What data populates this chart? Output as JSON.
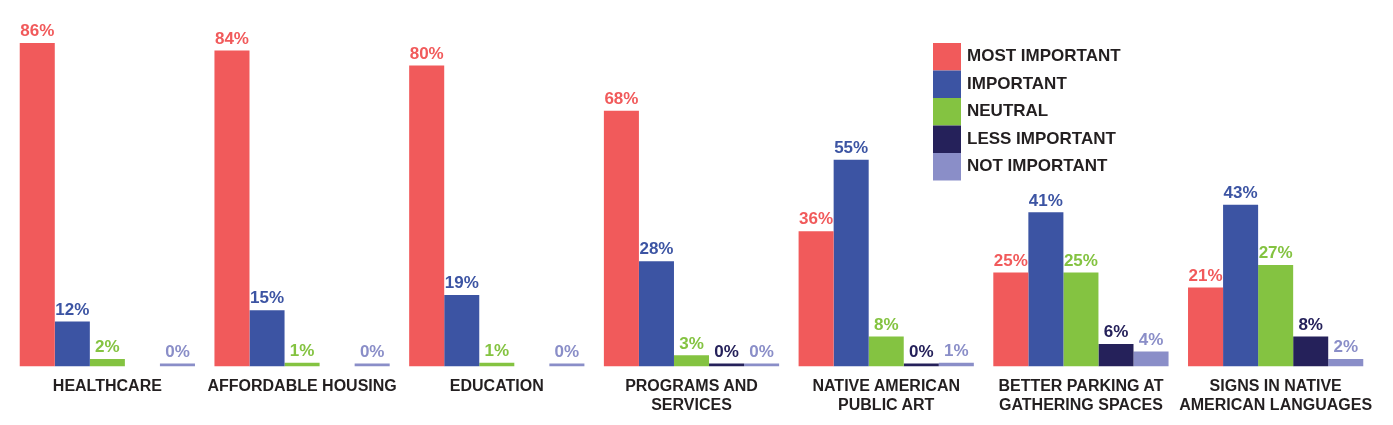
{
  "chart_data": {
    "type": "bar",
    "categories": [
      "HEALTHCARE",
      "AFFORDABLE HOUSING",
      "EDUCATION",
      "PROGRAMS AND SERVICES",
      "NATIVE AMERICAN PUBLIC ART",
      "BETTER PARKING AT GATHERING SPACES",
      "SIGNS IN NATIVE AMERICAN LANGUAGES"
    ],
    "series": [
      {
        "name": "MOST IMPORTANT",
        "color": "#f15a5b",
        "values": [
          86,
          84,
          80,
          68,
          36,
          25,
          21
        ],
        "value_labels": [
          "86%",
          "84%",
          "80%",
          "68%",
          "36%",
          "25%",
          "21%"
        ]
      },
      {
        "name": "IMPORTANT",
        "color": "#3c54a3",
        "values": [
          12,
          15,
          19,
          28,
          55,
          41,
          43
        ],
        "value_labels": [
          "12%",
          "15%",
          "19%",
          "28%",
          "55%",
          "41%",
          "43%"
        ]
      },
      {
        "name": "NEUTRAL",
        "color": "#84c341",
        "values": [
          2,
          1,
          1,
          3,
          8,
          25,
          27
        ],
        "value_labels": [
          "2%",
          "1%",
          "1%",
          "3%",
          "8%",
          "25%",
          "27%"
        ]
      },
      {
        "name": "LESS IMPORTANT",
        "color": "#25215a",
        "values": [
          null,
          null,
          null,
          0,
          0,
          6,
          8
        ],
        "value_labels": [
          null,
          null,
          null,
          "0%",
          "0%",
          "6%",
          "8%"
        ]
      },
      {
        "name": "NOT IMPORTANT",
        "color": "#8a8ec8",
        "values": [
          0,
          0,
          0,
          0,
          1,
          4,
          2
        ],
        "value_labels": [
          "0%",
          "0%",
          "0%",
          "0%",
          "1%",
          "4%",
          "2%"
        ]
      }
    ],
    "tick_labels": "x",
    "grid": false,
    "legend": "top right"
  }
}
